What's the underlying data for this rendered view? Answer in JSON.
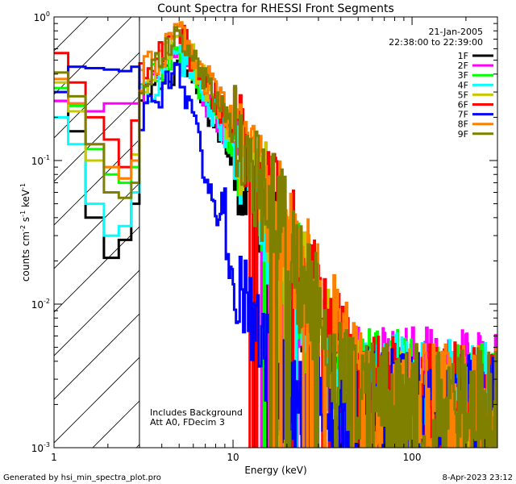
{
  "chart_data": {
    "type": "line",
    "title": "Count Spectra for RHESSI Front Segments",
    "xlabel": "Energy (keV)",
    "ylabel_parts": {
      "pre": "counts cm",
      "exp1": "-2",
      "mid": " s",
      "exp2": "-1",
      "post": " keV",
      "exp3": "-1"
    },
    "x_scale": "log",
    "y_scale": "log",
    "xlim": [
      1,
      300
    ],
    "ylim": [
      0.001,
      1.0
    ],
    "x_ticks": [
      {
        "value": 1,
        "label": "1"
      },
      {
        "value": 10,
        "label": "10"
      },
      {
        "value": 100,
        "label": "100"
      }
    ],
    "y_ticks": [
      {
        "value": 1,
        "base": "10",
        "exp": "0"
      },
      {
        "value": 0.1,
        "base": "10",
        "exp": "-1"
      },
      {
        "value": 0.01,
        "base": "10",
        "exp": "-2"
      },
      {
        "value": 0.001,
        "base": "10",
        "exp": "-3"
      }
    ],
    "attenuated_below_keV": 3,
    "legend_header": [
      "21-Jan-2005",
      "22:38:00 to 22:39:00"
    ],
    "annotations": [
      "Includes Background",
      "Att A0, FDecim 3"
    ],
    "footer_left": "Generated by hsi_min_spectra_plot.pro",
    "footer_right": "8-Apr-2023 23:12",
    "series": [
      {
        "name": "1F",
        "color": "#000000",
        "low": [
          0.26,
          0.16,
          0.04,
          0.021,
          0.028,
          0.05
        ],
        "peak": 0.5,
        "tail_end": 0.0012
      },
      {
        "name": "2F",
        "color": "#ff00ff",
        "low": [
          0.26,
          0.25,
          0.22,
          0.25,
          0.25,
          0.25
        ],
        "peak": 0.55,
        "tail_end": 0.0022
      },
      {
        "name": "3F",
        "color": "#00ff00",
        "low": [
          0.32,
          0.24,
          0.12,
          0.08,
          0.07,
          0.09
        ],
        "peak": 0.6,
        "tail_end": 0.002
      },
      {
        "name": "4F",
        "color": "#00ffff",
        "low": [
          0.2,
          0.13,
          0.05,
          0.03,
          0.035,
          0.06
        ],
        "peak": 0.55,
        "tail_end": 0.0019
      },
      {
        "name": "5F",
        "color": "#c8c800",
        "low": [
          0.35,
          0.22,
          0.1,
          0.09,
          0.075,
          0.11
        ],
        "peak": 0.7,
        "tail_end": 0.0016
      },
      {
        "name": "6F",
        "color": "#ff0000",
        "low": [
          0.56,
          0.35,
          0.2,
          0.14,
          0.09,
          0.19
        ],
        "peak": 0.75,
        "tail_end": 0.0018
      },
      {
        "name": "7F",
        "color": "#0000ff",
        "low": [
          0.3,
          0.45,
          0.44,
          0.43,
          0.42,
          0.45
        ],
        "peak": 0.43,
        "tail_end": 0.0015
      },
      {
        "name": "8F",
        "color": "#ff8000",
        "low": [
          0.37,
          0.25,
          0.13,
          0.09,
          0.075,
          0.1
        ],
        "peak": 0.78,
        "tail_end": 0.0018
      },
      {
        "name": "9F",
        "color": "#808000",
        "low": [
          0.41,
          0.28,
          0.13,
          0.06,
          0.055,
          0.07
        ],
        "peak": 0.72,
        "tail_end": 0.0017
      }
    ]
  }
}
